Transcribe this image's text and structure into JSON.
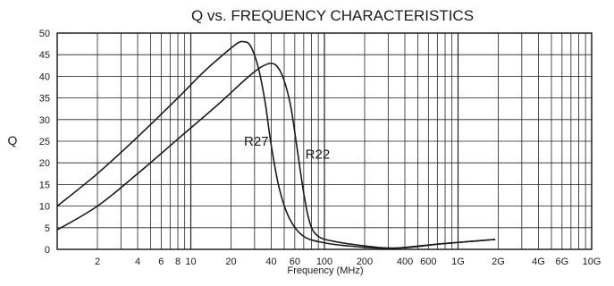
{
  "chart_data": {
    "type": "line",
    "title": "Q vs. FREQUENCY  CHARACTERISTICS",
    "xlabel": "Frequency (MHz)",
    "ylabel": "Q",
    "x_scale": "log",
    "xlim": [
      1,
      10000
    ],
    "ylim": [
      0,
      50
    ],
    "grid": true,
    "x_tick_labels": [
      {
        "value": 2,
        "label": "2"
      },
      {
        "value": 4,
        "label": "4"
      },
      {
        "value": 6,
        "label": "6"
      },
      {
        "value": 8,
        "label": "8"
      },
      {
        "value": 10,
        "label": "10"
      },
      {
        "value": 20,
        "label": "20"
      },
      {
        "value": 40,
        "label": "40"
      },
      {
        "value": 60,
        "label": "60"
      },
      {
        "value": 100,
        "label": "100"
      },
      {
        "value": 200,
        "label": "200"
      },
      {
        "value": 400,
        "label": "400"
      },
      {
        "value": 600,
        "label": "600"
      },
      {
        "value": 1000,
        "label": "1G"
      },
      {
        "value": 2000,
        "label": "2G"
      },
      {
        "value": 4000,
        "label": "4G"
      },
      {
        "value": 6000,
        "label": "6G"
      },
      {
        "value": 10000,
        "label": "10G"
      }
    ],
    "y_ticks": [
      0,
      5,
      10,
      15,
      20,
      25,
      30,
      35,
      40,
      45,
      50
    ],
    "series": [
      {
        "name": "R27",
        "label_at": {
          "x": 25,
          "y": 24
        },
        "points": [
          [
            1,
            10
          ],
          [
            2,
            17.5
          ],
          [
            4,
            26
          ],
          [
            8,
            35
          ],
          [
            12,
            40.5
          ],
          [
            16,
            44
          ],
          [
            22,
            47.5
          ],
          [
            25,
            48
          ],
          [
            28,
            47
          ],
          [
            32,
            42
          ],
          [
            36,
            34
          ],
          [
            40,
            24
          ],
          [
            46,
            14
          ],
          [
            55,
            7
          ],
          [
            70,
            3
          ],
          [
            100,
            1.5
          ],
          [
            150,
            0.8
          ],
          [
            250,
            0.3
          ],
          [
            350,
            0.3
          ],
          [
            600,
            1
          ],
          [
            1000,
            1.6
          ],
          [
            1900,
            2.3
          ]
        ]
      },
      {
        "name": "R22",
        "label_at": {
          "x": 72,
          "y": 21
        },
        "points": [
          [
            1,
            4.5
          ],
          [
            2,
            10
          ],
          [
            4,
            17.5
          ],
          [
            8,
            25.5
          ],
          [
            16,
            33.5
          ],
          [
            25,
            39
          ],
          [
            33,
            42
          ],
          [
            40,
            43
          ],
          [
            45,
            42
          ],
          [
            50,
            39
          ],
          [
            56,
            33
          ],
          [
            62,
            24
          ],
          [
            70,
            13
          ],
          [
            78,
            6
          ],
          [
            90,
            3
          ],
          [
            120,
            1.8
          ],
          [
            200,
            0.8
          ],
          [
            300,
            0.3
          ],
          [
            450,
            0.5
          ],
          [
            700,
            1.2
          ],
          [
            1000,
            1.6
          ],
          [
            1900,
            2.3
          ]
        ]
      }
    ]
  }
}
